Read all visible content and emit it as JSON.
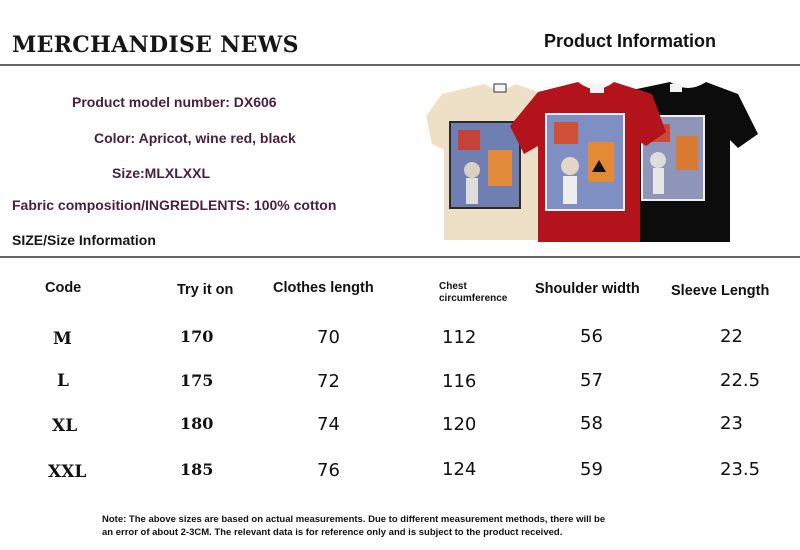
{
  "header": {
    "brand": "MERCHANDISE NEWS",
    "section_title": "Product Information"
  },
  "product_info": {
    "model": "Product model number: DX606",
    "color": "Color: Apricot, wine red, black",
    "size": "Size:MLXLXXL",
    "fabric": "Fabric composition/INGREDLENTS: 100% cotton",
    "size_info": "SIZE/Size Information"
  },
  "product_image": {
    "colors": {
      "apricot": "#eee0c6",
      "wine_red": "#b3141c",
      "black": "#0c0c0c"
    }
  },
  "size_table": {
    "headers": {
      "code": "Code",
      "try_on": "Try it on",
      "length": "Clothes length",
      "chest_line1": "Chest",
      "chest_line2": "circumference",
      "shoulder": "Shoulder width",
      "sleeve": "Sleeve Length"
    },
    "rows": [
      {
        "code": "M",
        "try_on": "170",
        "length": "70",
        "chest": "112",
        "shoulder": "56",
        "sleeve": "22"
      },
      {
        "code": "L",
        "try_on": "175",
        "length": "72",
        "chest": "116",
        "shoulder": "57",
        "sleeve": "22.5"
      },
      {
        "code": "XL",
        "try_on": "180",
        "length": "74",
        "chest": "120",
        "shoulder": "58",
        "sleeve": "23"
      },
      {
        "code": "XXL",
        "try_on": "185",
        "length": "76",
        "chest": "124",
        "shoulder": "59",
        "sleeve": "23.5"
      }
    ]
  },
  "note": {
    "line1": "Note: The above sizes are based on actual measurements. Due to different measurement methods, there will be",
    "line2": "an error of about 2-3CM. The relevant data is for reference only and is subject to the product received."
  }
}
